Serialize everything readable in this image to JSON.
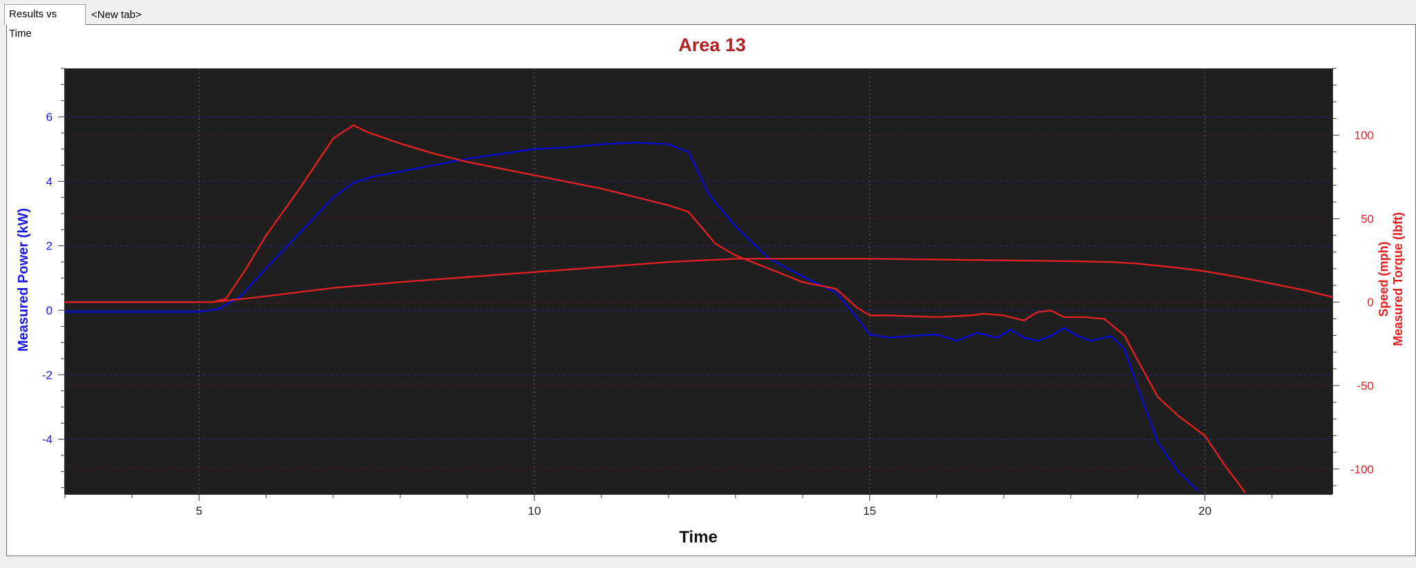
{
  "tabs": [
    {
      "label": "Results vs Time",
      "active": true
    },
    {
      "label": "<New tab>",
      "active": false
    }
  ],
  "chart_data": {
    "type": "line",
    "title": "Area 13",
    "xlabel": "Time",
    "ylabel_left": "Measured Power (kW)",
    "ylabel_right_lines": [
      "Speed (mph)",
      "Measured Torque (lbft)"
    ],
    "xlim": [
      3,
      21.9
    ],
    "ylim_left": [
      -5.7,
      7.5
    ],
    "ylim_right": [
      -115,
      140
    ],
    "x_ticks": [
      5,
      10,
      15,
      20
    ],
    "y_left_ticks": [
      -4,
      -2,
      0,
      2,
      4,
      6
    ],
    "y_right_ticks": [
      -100,
      -50,
      0,
      50,
      100
    ],
    "grid": true,
    "background": "#1f1f1f",
    "colors": {
      "left_axis": "#1a1ae6",
      "right_axis": "#e02020",
      "title": "#b02020"
    },
    "series": [
      {
        "name": "Measured Power (kW)",
        "axis": "left",
        "color": "#0a0ad0",
        "x": [
          3.0,
          5.0,
          5.3,
          5.6,
          6.0,
          6.5,
          7.0,
          7.3,
          7.6,
          8.0,
          8.5,
          9.0,
          9.5,
          10.0,
          10.5,
          11.0,
          11.5,
          12.0,
          12.3,
          12.6,
          13.0,
          13.5,
          14.0,
          14.5,
          14.8,
          15.0,
          15.3,
          15.6,
          16.0,
          16.3,
          16.6,
          16.9,
          17.1,
          17.3,
          17.5,
          17.7,
          17.9,
          18.1,
          18.3,
          18.6,
          18.8,
          19.0,
          19.3,
          19.6,
          19.9
        ],
        "y": [
          -0.05,
          -0.05,
          0.05,
          0.4,
          1.3,
          2.4,
          3.5,
          3.95,
          4.15,
          4.3,
          4.5,
          4.7,
          4.85,
          5.0,
          5.05,
          5.15,
          5.2,
          5.15,
          4.9,
          3.6,
          2.6,
          1.6,
          1.05,
          0.55,
          -0.2,
          -0.75,
          -0.85,
          -0.8,
          -0.75,
          -0.95,
          -0.7,
          -0.85,
          -0.6,
          -0.85,
          -0.95,
          -0.8,
          -0.55,
          -0.8,
          -0.95,
          -0.8,
          -1.2,
          -2.4,
          -4.1,
          -5.0,
          -5.6
        ]
      },
      {
        "name": "Measured Torque (lbft)",
        "axis": "right",
        "color": "#e02020",
        "x": [
          3.0,
          5.2,
          5.4,
          5.7,
          6.0,
          6.5,
          7.0,
          7.3,
          7.5,
          8.0,
          8.5,
          9.0,
          9.5,
          10.0,
          10.5,
          11.0,
          11.5,
          12.0,
          12.3,
          12.7,
          13.0,
          13.5,
          14.0,
          14.5,
          14.8,
          15.0,
          15.3,
          16.0,
          16.5,
          16.7,
          17.0,
          17.3,
          17.5,
          17.7,
          17.9,
          18.2,
          18.5,
          18.8,
          19.0,
          19.3,
          19.6,
          20.0,
          20.3,
          20.6
        ],
        "y": [
          0,
          0,
          2,
          20,
          40,
          68,
          98,
          106,
          102,
          95,
          89,
          84,
          80,
          76,
          72,
          68,
          63,
          58,
          54,
          35,
          28,
          20,
          12,
          8,
          -3,
          -8,
          -8,
          -9,
          -8,
          -7,
          -8,
          -11,
          -6,
          -5,
          -9,
          -9,
          -10,
          -20,
          -35,
          -57,
          -68,
          -80,
          -98,
          -114
        ]
      },
      {
        "name": "Speed (mph)",
        "axis": "right",
        "color": "#e02020",
        "x": [
          3.0,
          5.2,
          6.0,
          7.0,
          8.0,
          9.0,
          10.0,
          11.0,
          12.0,
          13.0,
          14.0,
          15.0,
          16.0,
          17.0,
          18.0,
          18.6,
          19.0,
          19.5,
          20.0,
          20.5,
          21.0,
          21.5,
          21.9
        ],
        "y": [
          0,
          0,
          3.5,
          8.5,
          12,
          15,
          18,
          21,
          24,
          26,
          26,
          26,
          25.5,
          25,
          24.5,
          24,
          23,
          21,
          18.5,
          15,
          11,
          7,
          3
        ]
      }
    ]
  }
}
